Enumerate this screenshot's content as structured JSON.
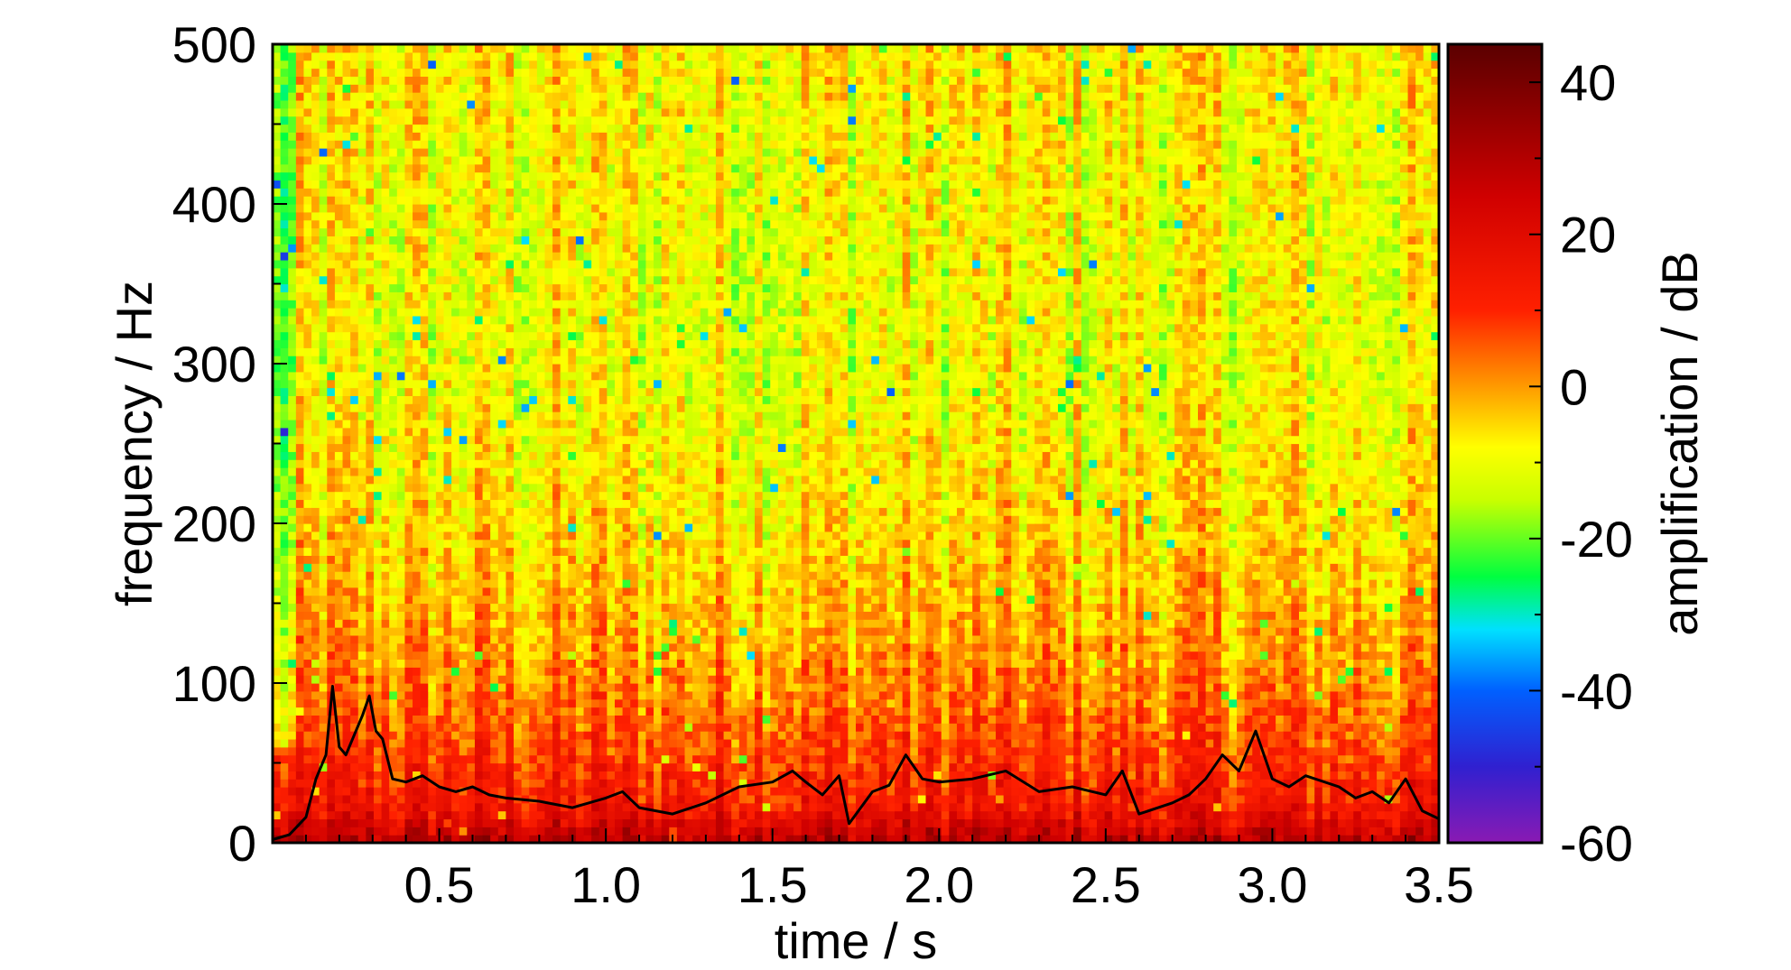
{
  "chart_data": {
    "type": "heatmap",
    "title": "",
    "xlabel": "time / s",
    "ylabel": "frequency / Hz",
    "xlim": [
      0,
      3.5
    ],
    "ylim": [
      0,
      500
    ],
    "x_ticks": [
      "0.5",
      "1.0",
      "1.5",
      "2.0",
      "2.5",
      "3.0",
      "3.5"
    ],
    "x_tick_values": [
      0.5,
      1.0,
      1.5,
      2.0,
      2.5,
      3.0,
      3.5
    ],
    "y_ticks": [
      "0",
      "100",
      "200",
      "300",
      "400",
      "500"
    ],
    "y_tick_values": [
      0,
      100,
      200,
      300,
      400,
      500
    ],
    "colorbar": {
      "label": "amplification / dB",
      "range": [
        -60,
        45
      ],
      "ticks": [
        "40",
        "20",
        "0",
        "-20",
        "-40",
        "-60"
      ],
      "tick_values": [
        40,
        20,
        0,
        -20,
        -40,
        -60
      ],
      "colors": [
        {
          "value": -60,
          "color": "#8a1ab3"
        },
        {
          "value": -50,
          "color": "#3020d0"
        },
        {
          "value": -40,
          "color": "#0060ff"
        },
        {
          "value": -32,
          "color": "#00e0ff"
        },
        {
          "value": -25,
          "color": "#00ff40"
        },
        {
          "value": -15,
          "color": "#c8ff00"
        },
        {
          "value": -8,
          "color": "#ffff00"
        },
        {
          "value": 0,
          "color": "#ff9a00"
        },
        {
          "value": 10,
          "color": "#ff2000"
        },
        {
          "value": 25,
          "color": "#d00000"
        },
        {
          "value": 45,
          "color": "#5a0000"
        }
      ]
    },
    "heatmap_summary": {
      "time_bins": 150,
      "freq_bins": 100,
      "mean_level_by_frequency_db": [
        {
          "frequency": 0,
          "level": 30
        },
        {
          "frequency": 10,
          "level": 22
        },
        {
          "frequency": 25,
          "level": 14
        },
        {
          "frequency": 50,
          "level": 9
        },
        {
          "frequency": 75,
          "level": 5
        },
        {
          "frequency": 100,
          "level": 2
        },
        {
          "frequency": 150,
          "level": -3
        },
        {
          "frequency": 200,
          "level": -6
        },
        {
          "frequency": 300,
          "level": -10
        },
        {
          "frequency": 400,
          "level": -9
        },
        {
          "frequency": 500,
          "level": -7
        }
      ]
    },
    "overlay_line": {
      "color": "#000000",
      "points": [
        [
          0.0,
          2
        ],
        [
          0.05,
          5
        ],
        [
          0.1,
          16
        ],
        [
          0.13,
          40
        ],
        [
          0.16,
          55
        ],
        [
          0.18,
          98
        ],
        [
          0.2,
          60
        ],
        [
          0.22,
          55
        ],
        [
          0.25,
          70
        ],
        [
          0.27,
          80
        ],
        [
          0.29,
          92
        ],
        [
          0.31,
          70
        ],
        [
          0.33,
          65
        ],
        [
          0.36,
          40
        ],
        [
          0.4,
          38
        ],
        [
          0.45,
          42
        ],
        [
          0.5,
          35
        ],
        [
          0.55,
          32
        ],
        [
          0.6,
          35
        ],
        [
          0.65,
          30
        ],
        [
          0.7,
          28
        ],
        [
          0.8,
          26
        ],
        [
          0.9,
          22
        ],
        [
          1.0,
          28
        ],
        [
          1.05,
          32
        ],
        [
          1.1,
          22
        ],
        [
          1.2,
          18
        ],
        [
          1.3,
          25
        ],
        [
          1.4,
          35
        ],
        [
          1.5,
          38
        ],
        [
          1.56,
          45
        ],
        [
          1.6,
          38
        ],
        [
          1.65,
          30
        ],
        [
          1.7,
          42
        ],
        [
          1.73,
          12
        ],
        [
          1.8,
          32
        ],
        [
          1.85,
          36
        ],
        [
          1.9,
          55
        ],
        [
          1.95,
          40
        ],
        [
          2.0,
          38
        ],
        [
          2.1,
          40
        ],
        [
          2.2,
          45
        ],
        [
          2.3,
          32
        ],
        [
          2.4,
          35
        ],
        [
          2.5,
          30
        ],
        [
          2.55,
          45
        ],
        [
          2.6,
          18
        ],
        [
          2.7,
          25
        ],
        [
          2.75,
          30
        ],
        [
          2.8,
          40
        ],
        [
          2.85,
          55
        ],
        [
          2.9,
          45
        ],
        [
          2.95,
          70
        ],
        [
          3.0,
          40
        ],
        [
          3.05,
          35
        ],
        [
          3.1,
          42
        ],
        [
          3.2,
          35
        ],
        [
          3.25,
          28
        ],
        [
          3.3,
          32
        ],
        [
          3.35,
          25
        ],
        [
          3.4,
          40
        ],
        [
          3.45,
          20
        ],
        [
          3.5,
          15
        ]
      ]
    },
    "grid": false,
    "legend": "none"
  }
}
